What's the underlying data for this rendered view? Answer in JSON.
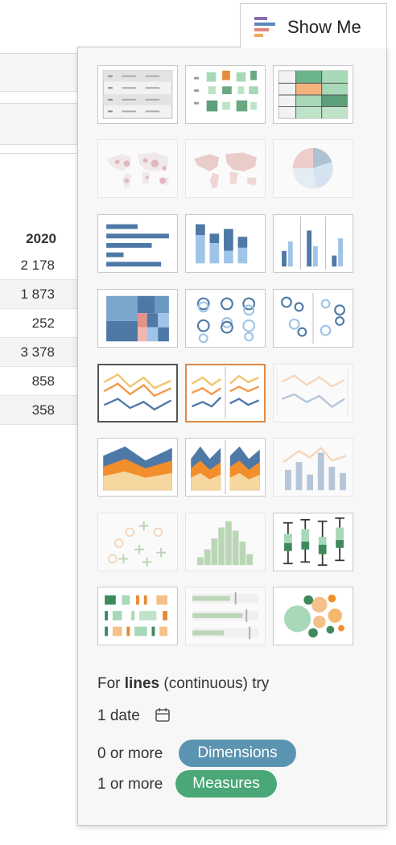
{
  "tab": {
    "label": "Show Me",
    "icon": "show-me-icon"
  },
  "worksheet": {
    "year_header": "2020",
    "values": [
      "2 178",
      "1 873",
      "252",
      "3 378",
      "858",
      "358"
    ]
  },
  "thumbnails": [
    {
      "name": "text-table",
      "state": "normal"
    },
    {
      "name": "highlight-table",
      "state": "normal"
    },
    {
      "name": "heat-map",
      "state": "normal"
    },
    {
      "name": "symbol-map",
      "state": "disabled"
    },
    {
      "name": "filled-map",
      "state": "disabled"
    },
    {
      "name": "pie-chart",
      "state": "disabled"
    },
    {
      "name": "horizontal-bars",
      "state": "normal"
    },
    {
      "name": "stacked-bars",
      "state": "normal"
    },
    {
      "name": "side-by-side-bars",
      "state": "normal"
    },
    {
      "name": "treemap",
      "state": "normal"
    },
    {
      "name": "circle-views",
      "state": "normal"
    },
    {
      "name": "side-by-side-circles",
      "state": "normal"
    },
    {
      "name": "continuous-lines",
      "state": "selected"
    },
    {
      "name": "discrete-lines",
      "state": "recommended"
    },
    {
      "name": "dual-lines",
      "state": "disabled"
    },
    {
      "name": "area-continuous",
      "state": "normal"
    },
    {
      "name": "area-discrete",
      "state": "normal"
    },
    {
      "name": "dual-combination",
      "state": "disabled"
    },
    {
      "name": "scatter-plot",
      "state": "disabled"
    },
    {
      "name": "histogram",
      "state": "disabled"
    },
    {
      "name": "box-and-whisker",
      "state": "normal"
    },
    {
      "name": "gantt-chart",
      "state": "normal"
    },
    {
      "name": "bullet-graph",
      "state": "disabled"
    },
    {
      "name": "packed-bubbles",
      "state": "normal"
    }
  ],
  "hint": {
    "prefix": "For ",
    "bold": "lines",
    "suffix": " (continuous) try",
    "date_line": "1 date",
    "dimensions_prefix": "0 or more",
    "dimensions_pill": "Dimensions",
    "measures_prefix": "1 or more",
    "measures_pill": "Measures"
  },
  "colors": {
    "blue": "#4e79a7",
    "light_blue": "#a0c4e8",
    "orange": "#f28e2b",
    "light_orange": "#f6b86f",
    "green": "#59a14f",
    "teal_green": "#4aa777",
    "dimensions_pill": "#5b94b0",
    "measures_pill": "#4aa777",
    "recommended_border": "#e08a44"
  }
}
